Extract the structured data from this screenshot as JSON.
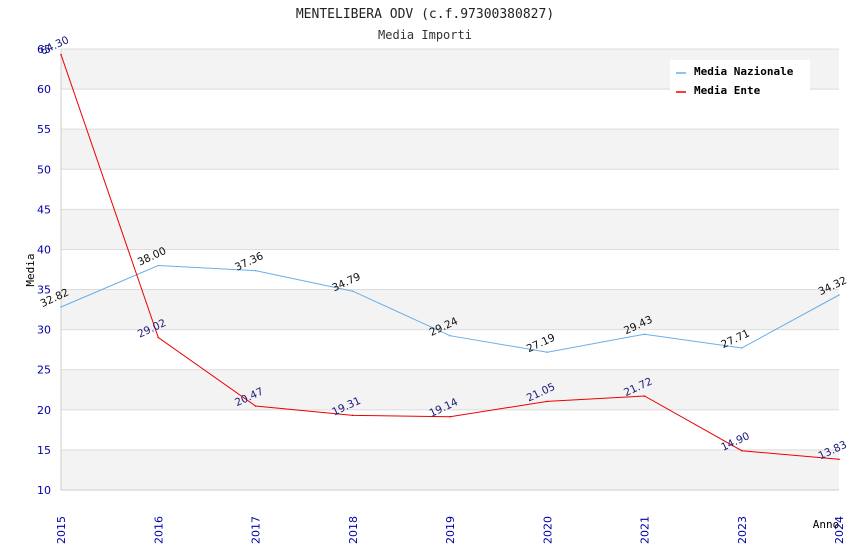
{
  "chart_data": {
    "type": "line",
    "title": "MENTELIBERA ODV (c.f.97300380827)",
    "subtitle": "Media Importi",
    "xlabel": "Anno",
    "ylabel": "Media",
    "ylim": [
      10,
      65
    ],
    "yticks": [
      10,
      15,
      20,
      25,
      30,
      35,
      40,
      45,
      50,
      55,
      60,
      65
    ],
    "grid": true,
    "legend": "top-right",
    "categories": [
      "2015",
      "2016",
      "2017",
      "2018",
      "2019",
      "2020",
      "2021",
      "2023",
      "2024"
    ],
    "series": [
      {
        "name": "Media Nazionale",
        "color": "#6aaee8",
        "values": [
          32.82,
          38.0,
          37.36,
          34.79,
          29.24,
          27.19,
          29.43,
          27.71,
          34.32
        ],
        "labels": [
          "32.82",
          "38.00",
          "37.36",
          "34.79",
          "29.24",
          "27.19",
          "29.43",
          "27.71",
          "34.32"
        ]
      },
      {
        "name": "Media Ente",
        "color": "#ee0000",
        "values": [
          64.3,
          29.02,
          20.47,
          19.31,
          19.14,
          21.05,
          21.72,
          14.9,
          13.83
        ],
        "labels": [
          "64.30",
          "29.02",
          "20.47",
          "19.31",
          "19.14",
          "21.05",
          "21.72",
          "14.90",
          "13.83"
        ]
      }
    ]
  }
}
